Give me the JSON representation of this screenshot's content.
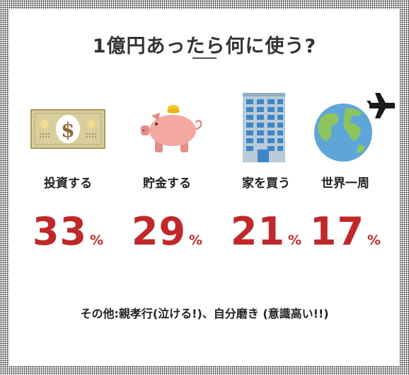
{
  "title": "1億円あったら何に使う?",
  "chart_data": {
    "type": "table",
    "title": "1億円あったら何に使う?",
    "unit": "%",
    "categories": [
      "投資する",
      "貯金する",
      "家を買う",
      "世界一周"
    ],
    "values": [
      33,
      29,
      21,
      17
    ],
    "icons": [
      "dollar-bill-icon",
      "piggy-bank-icon",
      "building-icon",
      "globe-airplane-icon"
    ],
    "colors": {
      "accent": "#c0282a"
    }
  },
  "items": [
    {
      "label": "投資する",
      "value": "33",
      "unit": "%"
    },
    {
      "label": "貯金する",
      "value": "29",
      "unit": "%"
    },
    {
      "label": "家を買う",
      "value": "21",
      "unit": "%"
    },
    {
      "label": "世界一周",
      "value": "17",
      "unit": "%"
    }
  ],
  "footer": "その他:親孝行(泣ける!)、自分磨き (意識高い!!)"
}
